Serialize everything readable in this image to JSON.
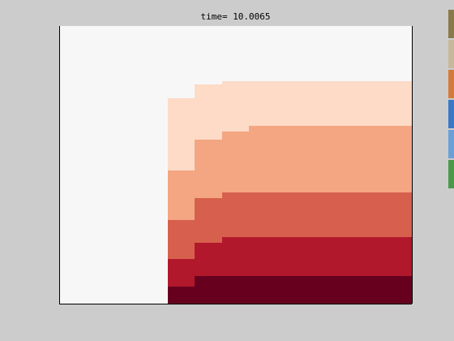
{
  "chart_data": {
    "type": "heatmap",
    "title": "time= 10.0065",
    "grid": false,
    "legend": "none",
    "colors": {
      "background": "#f7f7f7",
      "levels": [
        "#fddbc7",
        "#f4a582",
        "#d6604d",
        "#b2182b",
        "#67001f"
      ],
      "axes": "#000000"
    },
    "x_range": [
      0,
      13
    ],
    "y_range": [
      0,
      10
    ],
    "columns": [
      {
        "x0": 4,
        "x1": 5,
        "boundaries": [
          0.6,
          1.6,
          3.0,
          4.8,
          7.4
        ]
      },
      {
        "x0": 5,
        "x1": 6,
        "boundaries": [
          1.0,
          2.2,
          3.8,
          5.9,
          7.9
        ]
      },
      {
        "x0": 6,
        "x1": 7,
        "boundaries": [
          1.0,
          2.4,
          4.0,
          6.2,
          8.0
        ]
      },
      {
        "x0": 7,
        "x1": 13,
        "boundaries": [
          1.0,
          2.4,
          4.0,
          6.4,
          8.0
        ]
      }
    ]
  },
  "edge_strip": {
    "colors": [
      "#8a7a4a",
      "#c8b89a",
      "#d47a3a",
      "#3a78c8",
      "#6aa0d8",
      "#4a9a4a"
    ]
  }
}
